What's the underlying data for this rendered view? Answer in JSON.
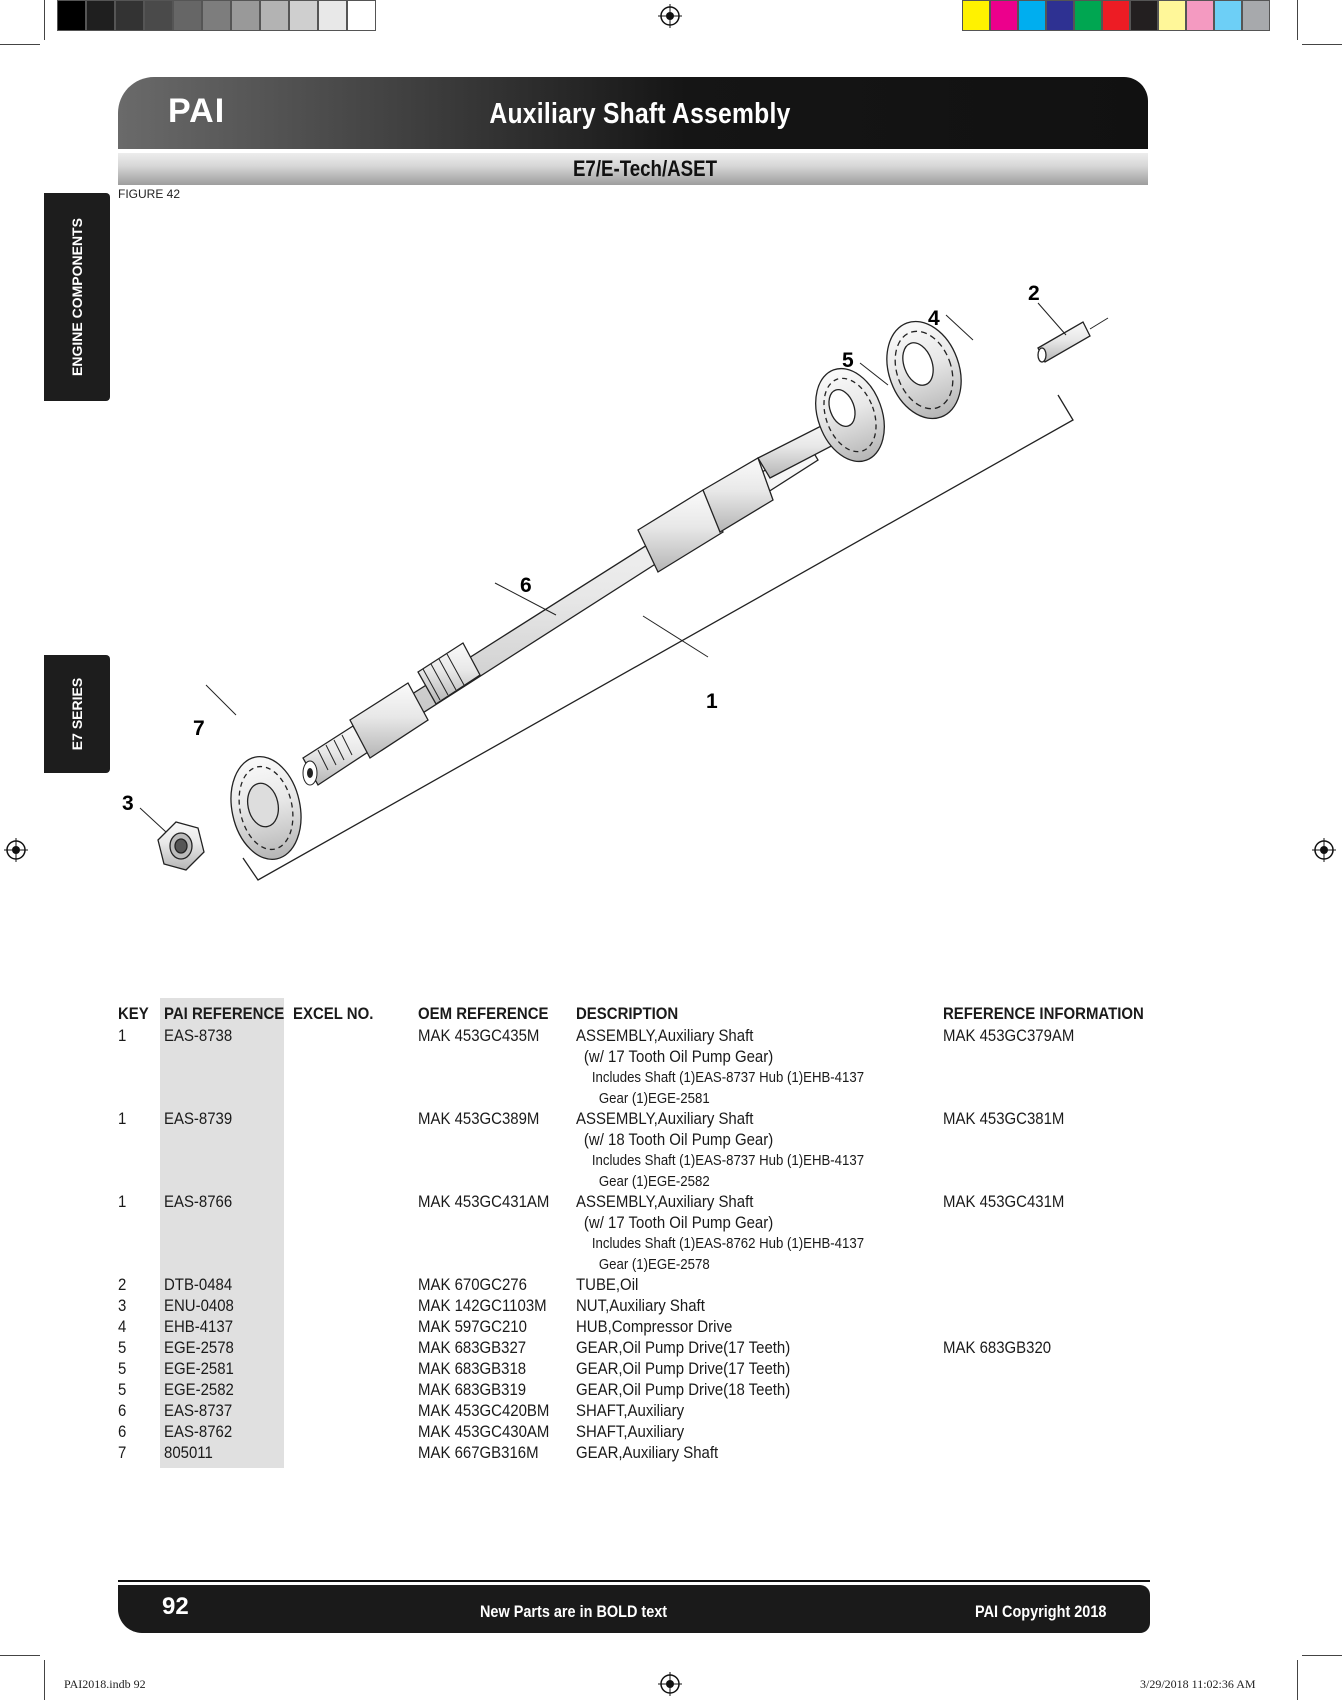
{
  "header": {
    "brand": "PAI",
    "title": "Auxiliary Shaft Assembly",
    "subtitle": "E7/E-Tech/ASET",
    "figure": "FIGURE 42"
  },
  "side_tabs": {
    "engine": "ENGINE COMPONENTS",
    "series": "E7 SERIES"
  },
  "diagram": {
    "keys": [
      "1",
      "2",
      "3",
      "4",
      "5",
      "6",
      "7"
    ]
  },
  "table": {
    "headers": [
      "KEY",
      "PAI REFERENCE",
      "EXCEL NO.",
      "OEM REFERENCE",
      "DESCRIPTION",
      "REFERENCE INFORMATION"
    ],
    "rows": [
      {
        "key": "1",
        "pai": "EAS-8738",
        "oem": "MAK 453GC435M",
        "desc": "ASSEMBLY,Auxiliary Shaft",
        "desc2": "(w/ 17 Tooth Oil Pump Gear)",
        "desc3": "Includes Shaft (1)EAS-8737 Hub (1)EHB-4137",
        "desc4": "Gear (1)EGE-2581",
        "ref": "MAK 453GC379AM"
      },
      {
        "key": "1",
        "pai": "EAS-8739",
        "oem": "MAK 453GC389M",
        "desc": "ASSEMBLY,Auxiliary Shaft",
        "desc2": "(w/ 18 Tooth Oil Pump Gear)",
        "desc3": "Includes Shaft (1)EAS-8737 Hub (1)EHB-4137",
        "desc4": "Gear (1)EGE-2582",
        "ref": "MAK 453GC381M"
      },
      {
        "key": "1",
        "pai": "EAS-8766",
        "oem": "MAK 453GC431AM",
        "desc": "ASSEMBLY,Auxiliary Shaft",
        "desc2": "(w/ 17 Tooth Oil Pump Gear)",
        "desc3": "Includes Shaft (1)EAS-8762 Hub (1)EHB-4137",
        "desc4": "Gear (1)EGE-2578",
        "ref": "MAK 453GC431M"
      },
      {
        "key": "2",
        "pai": "DTB-0484",
        "oem": "MAK 670GC276",
        "desc": "TUBE,Oil",
        "ref": ""
      },
      {
        "key": "3",
        "pai": "ENU-0408",
        "oem": "MAK 142GC1103M",
        "desc": "NUT,Auxiliary Shaft",
        "ref": ""
      },
      {
        "key": "4",
        "pai": "EHB-4137",
        "oem": "MAK 597GC210",
        "desc": "HUB,Compressor Drive",
        "ref": ""
      },
      {
        "key": "5",
        "pai": "EGE-2578",
        "oem": "MAK 683GB327",
        "desc": "GEAR,Oil Pump Drive(17 Teeth)",
        "ref": "MAK 683GB320"
      },
      {
        "key": "5",
        "pai": "EGE-2581",
        "oem": "MAK 683GB318",
        "desc": "GEAR,Oil Pump Drive(17 Teeth)",
        "ref": ""
      },
      {
        "key": "5",
        "pai": "EGE-2582",
        "oem": "MAK 683GB319",
        "desc": "GEAR,Oil Pump Drive(18 Teeth)",
        "ref": ""
      },
      {
        "key": "6",
        "pai": "EAS-8737",
        "oem": "MAK 453GC420BM",
        "desc": "SHAFT,Auxiliary",
        "ref": ""
      },
      {
        "key": "6",
        "pai": "EAS-8762",
        "oem": "MAK 453GC430AM",
        "desc": "SHAFT,Auxiliary",
        "ref": ""
      },
      {
        "key": "7",
        "pai": "805011",
        "oem": "MAK 667GB316M",
        "desc": "GEAR,Auxiliary Shaft",
        "ref": ""
      }
    ]
  },
  "footer": {
    "page": "92",
    "note": "New Parts are in BOLD text",
    "copyright": "PAI Copyright 2018"
  },
  "slug": {
    "file": "PAI2018.indb   92",
    "timestamp": "3/29/2018   11:02:36 AM"
  },
  "colors": {
    "header_dark": "#111111",
    "shade": "#e0e0e0"
  }
}
